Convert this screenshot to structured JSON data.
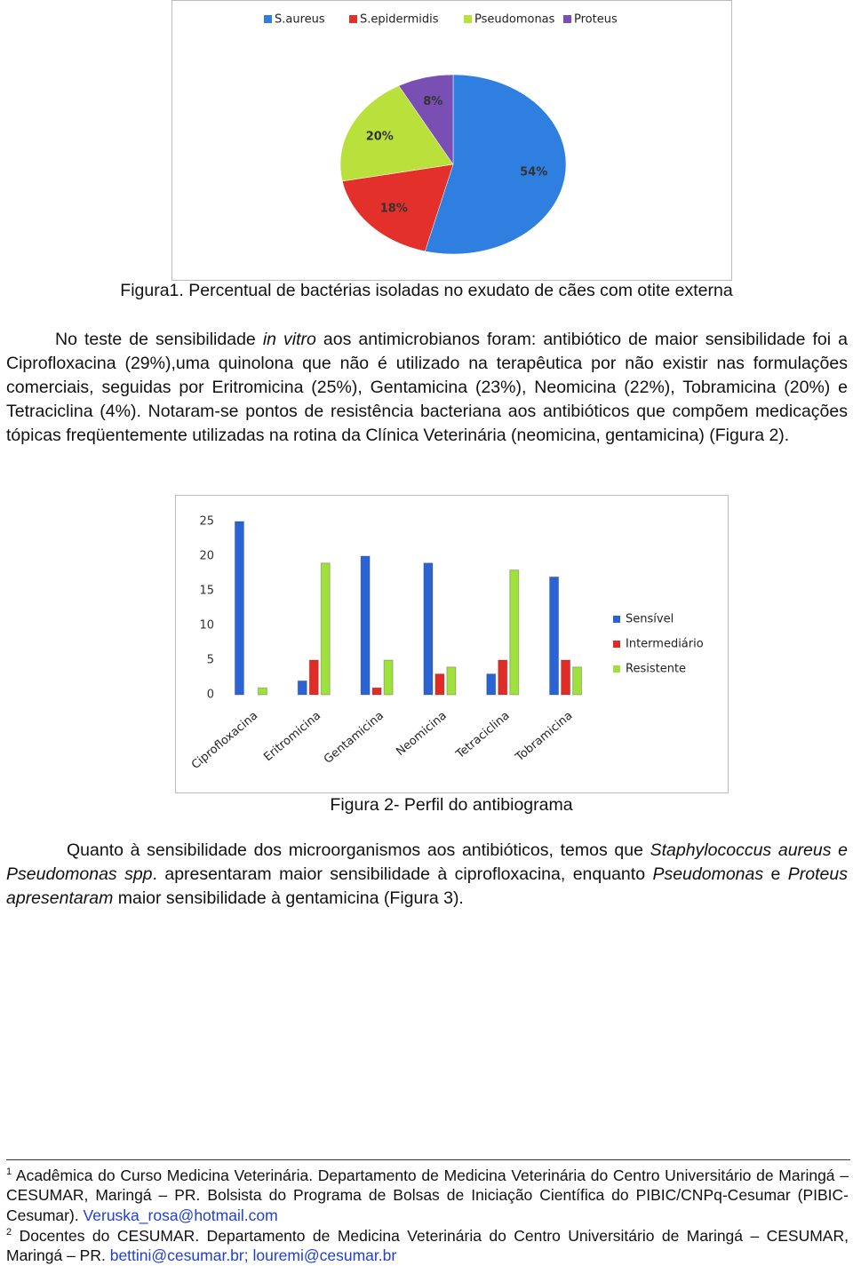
{
  "chart_data": [
    {
      "type": "pie",
      "categories": [
        "S.aureus",
        "S.epidermidis",
        "Pseudomonas",
        "Proteus"
      ],
      "values": [
        54,
        18,
        20,
        8
      ],
      "value_labels": [
        "54%",
        "18%",
        "20%",
        "8%"
      ],
      "colors": [
        "#2f7fe0",
        "#e4302b",
        "#b9e03b",
        "#7a4fb3"
      ],
      "legend": "top"
    },
    {
      "type": "bar",
      "categories": [
        "Ciprofloxacina",
        "Eritromicina",
        "Gentamicina",
        "Neomicina",
        "Tetraciclina",
        "Tobramicina"
      ],
      "series": [
        {
          "name": "Sensível",
          "color": "#2a63d4",
          "values": [
            25,
            2,
            20,
            19,
            3,
            17
          ]
        },
        {
          "name": "Intermediário",
          "color": "#e02b26",
          "values": [
            0,
            5,
            1,
            3,
            5,
            5
          ]
        },
        {
          "name": "Resistente",
          "color": "#9ee03c",
          "values": [
            1,
            19,
            5,
            4,
            18,
            4
          ]
        }
      ],
      "ylim": [
        0,
        25
      ],
      "yticks": [
        0,
        5,
        10,
        15,
        20,
        25
      ],
      "grid": false,
      "legend": "right"
    }
  ],
  "document": {
    "figure1_caption": "Figura1. Percentual de bactérias isoladas no exudato de cães com otite externa",
    "paragraph1": [
      "No teste de sensibilidade ",
      "in vitro",
      " aos antimicrobianos foram: antibiótico de maior sensibilidade foi a Ciprofloxacina (29%),uma quinolona que não é utilizado na terapêutica por não existir nas formulações comerciais, seguidas por Eritromicina (25%), Gentamicina (23%), Neomicina (22%), Tobramicina (20%) e Tetraciclina (4%). Notaram-se pontos de resistência bacteriana aos antibióticos que compõem medicações tópicas freqüentemente utilizadas na rotina da Clínica Veterinária (neomicina, gentamicina) (Figura 2)."
    ],
    "figure2_caption": "Figura 2- Perfil do antibiograma",
    "paragraph2": [
      "Quanto à sensibilidade dos microorganismos aos antibióticos, temos que ",
      "Staphylococcus aureus e Pseudomonas spp",
      ". apresentaram maior sensibilidade à ciprofloxacina, enquanto ",
      "Pseudomonas",
      " e ",
      "Proteus apresentaram",
      " maior sensibilidade à gentamicina (Figura 3)."
    ],
    "footnotes": [
      {
        "number": "1",
        "text": "Acadêmica do Curso Medicina Veterinária. Departamento de Medicina Veterinária do Centro Universitário de Maringá – CESUMAR, Maringá – PR. Bolsista do Programa de Bolsas de Iniciação Científica do PIBIC/CNPq-Cesumar (PIBIC-Cesumar). ",
        "email": "Veruska_rosa@hotmail.com"
      },
      {
        "number": "2",
        "text": "Docentes do CESUMAR. Departamento de Medicina Veterinária do Centro Universitário de Maringá – CESUMAR, Maringá – PR. ",
        "email": "bettini@cesumar.br; louremi@cesumar.br"
      }
    ]
  }
}
